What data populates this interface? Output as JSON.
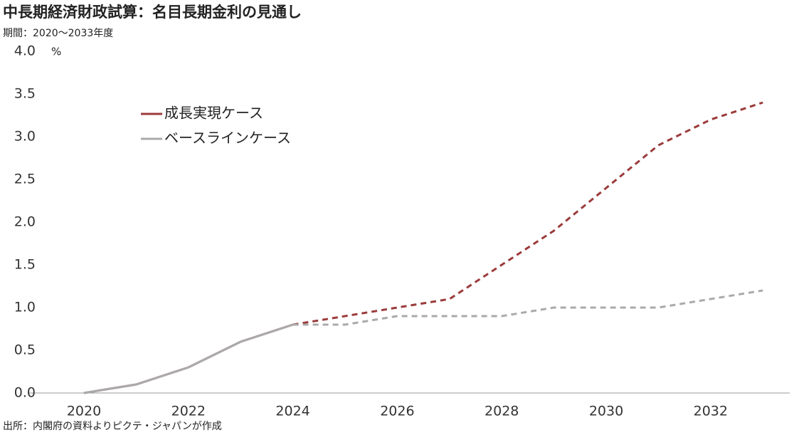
{
  "chart_data": {
    "type": "line",
    "title": "中長期経済財政試算：名目長期金利の見通し",
    "subtitle": "期間：2020～2033年度",
    "source": "出所：内閣府の資料よりピクテ・ジャパンが作成",
    "y_unit": "%",
    "x": [
      2020,
      2021,
      2022,
      2023,
      2024,
      2025,
      2026,
      2027,
      2028,
      2029,
      2030,
      2031,
      2032,
      2033
    ],
    "series": [
      {
        "name": "成長実現ケース",
        "color": "#9b3b3b",
        "values": [
          0,
          0.1,
          0.3,
          0.6,
          0.8,
          0.9,
          1.0,
          1.1,
          1.5,
          1.9,
          2.4,
          2.9,
          3.2,
          3.4
        ]
      },
      {
        "name": "ベースラインケース",
        "color": "#aaaaaa",
        "values": [
          0,
          0.1,
          0.3,
          0.6,
          0.8,
          0.8,
          0.9,
          0.9,
          0.9,
          1.0,
          1.0,
          1.0,
          1.1,
          1.2
        ]
      }
    ],
    "dashed_from": 2024,
    "xlim": [
      2019,
      2033.5
    ],
    "xticks": [
      2020,
      2022,
      2024,
      2026,
      2028,
      2030,
      2032
    ],
    "ylim": [
      0,
      4
    ],
    "yticks": [
      {
        "value": 0,
        "label": "0.0"
      },
      {
        "value": 0.5,
        "label": "0.5"
      },
      {
        "value": 1,
        "label": "1.0"
      },
      {
        "value": 1.5,
        "label": "1.5"
      },
      {
        "value": 2,
        "label": "2.0"
      },
      {
        "value": 2.5,
        "label": "2.5"
      },
      {
        "value": 3,
        "label": "3.0"
      },
      {
        "value": 3.5,
        "label": "3.5"
      },
      {
        "value": 4,
        "label": "4.0"
      }
    ],
    "legend": "upper left",
    "grid": false
  }
}
